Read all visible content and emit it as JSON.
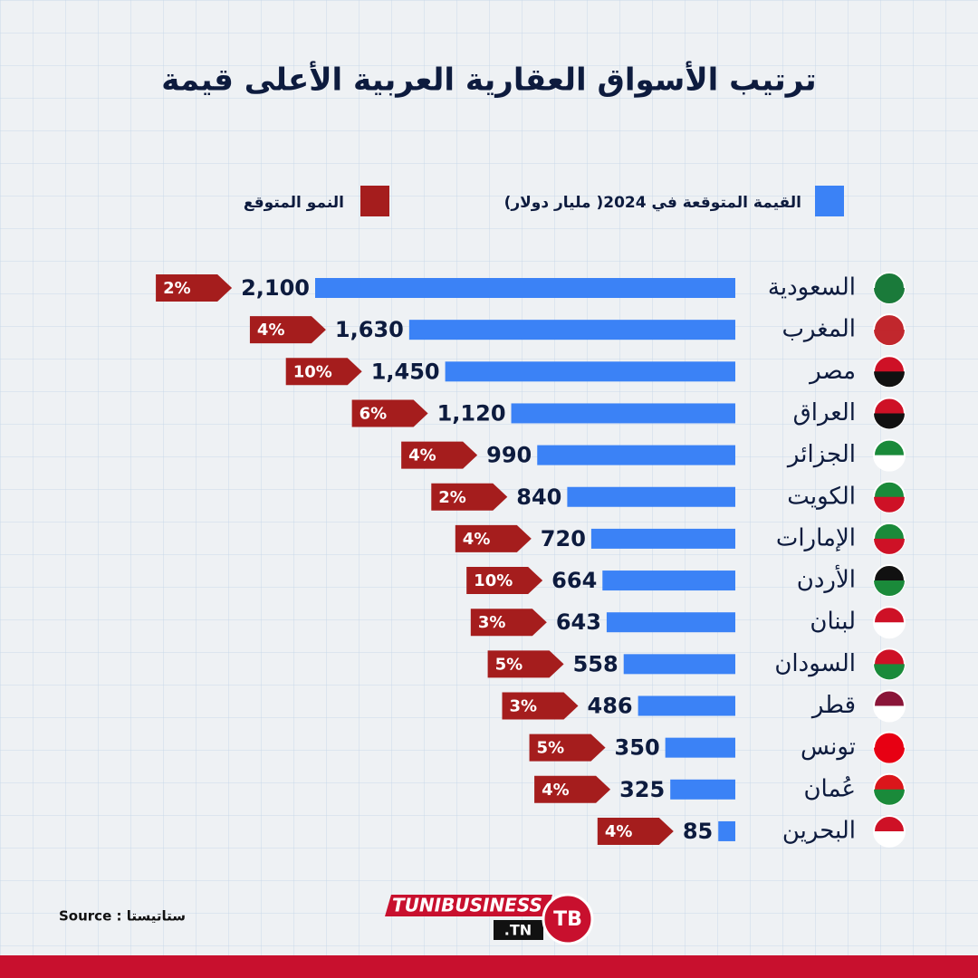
{
  "chart_data": {
    "type": "bar",
    "orientation": "horizontal",
    "title": "ترتيب الأسواق العقارية العربية الأعلى قيمة",
    "categories": [
      "السعودية",
      "المغرب",
      "مصر",
      "العراق",
      "الجزائر",
      "الكويت",
      "الإمارات",
      "الأردن",
      "لبنان",
      "السودان",
      "قطر",
      "تونس",
      "عُمان",
      "البحرين"
    ],
    "series": [
      {
        "name": "القيمة المتوقعة في 2024( مليار دولار)",
        "color": "#3b82f6",
        "values": [
          2100,
          1630,
          1450,
          1120,
          990,
          840,
          720,
          664,
          643,
          558,
          486,
          350,
          325,
          85
        ],
        "value_labels": [
          "2,100",
          "1,630",
          "1,450",
          "1,120",
          "990",
          "840",
          "720",
          "664",
          "643",
          "558",
          "486",
          "350",
          "325",
          "85"
        ]
      },
      {
        "name": "النمو المتوقع",
        "color": "#a51d1d",
        "values": [
          2,
          4,
          10,
          6,
          4,
          2,
          4,
          10,
          3,
          5,
          3,
          5,
          4,
          4
        ],
        "value_labels": [
          "2%",
          "4%",
          "10%",
          "6%",
          "4%",
          "2%",
          "4%",
          "10%",
          "3%",
          "5%",
          "3%",
          "5%",
          "4%",
          "4%"
        ]
      }
    ],
    "source": "Source : ستاتيستا",
    "brand": {
      "name": "TUNIBUSINESS",
      "suffix": ".TN",
      "badge": "TB"
    }
  }
}
